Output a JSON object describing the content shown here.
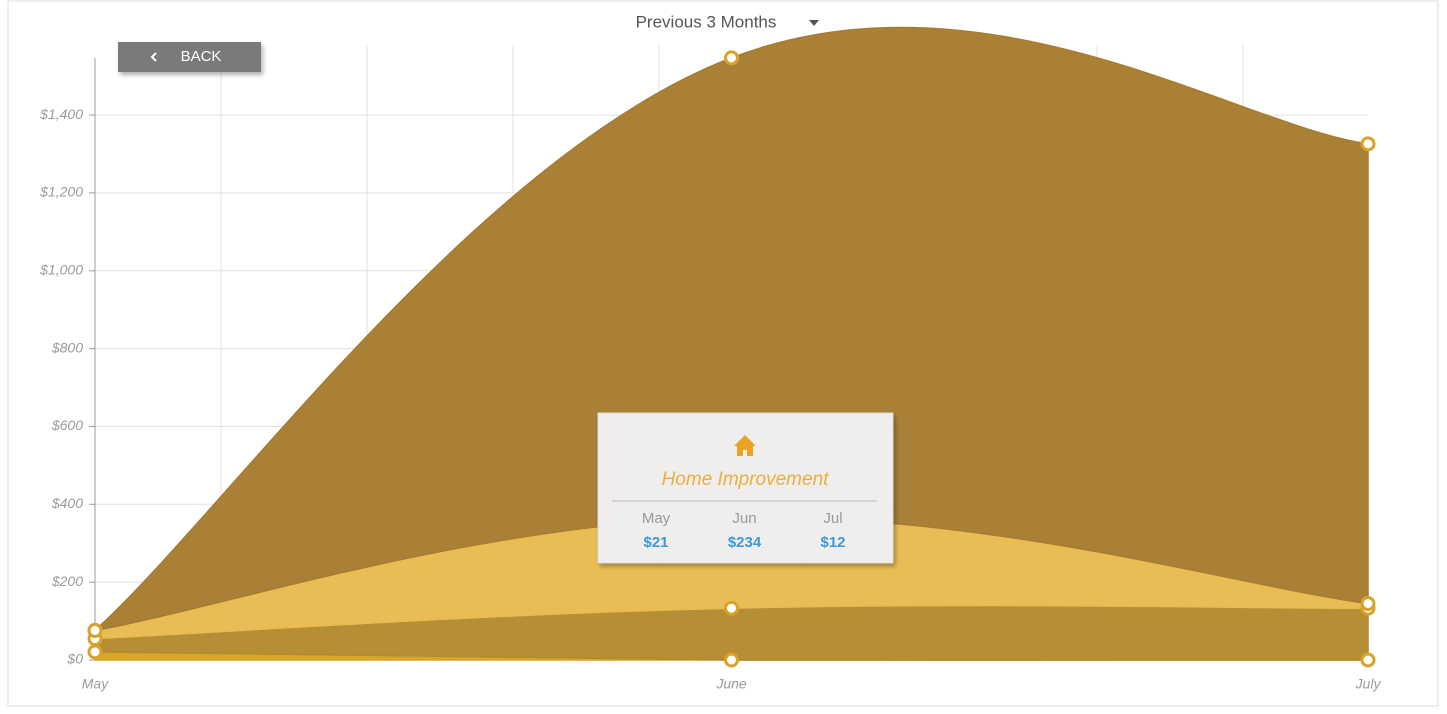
{
  "controls": {
    "range": "Previous 3 Months",
    "back": "BACK"
  },
  "chart_data": {
    "type": "stacked_area",
    "categories": [
      "May",
      "June",
      "July"
    ],
    "series": [
      {
        "color": "#d6a324",
        "values": [
          21,
          0,
          0
        ]
      },
      {
        "color": "#b38a2e",
        "values": [
          34,
          133,
          133
        ]
      },
      {
        "name": "Home Improvement",
        "color": "#e8bb4f",
        "values": [
          21,
          234,
          12
        ],
        "value_labels": [
          "$21",
          "$234",
          "$12"
        ]
      },
      {
        "color": "#a67c30",
        "values": [
          0,
          1180,
          1181
        ]
      }
    ],
    "ylim": [
      0,
      1580
    ],
    "yticks": [
      {
        "value": 0,
        "label": "$0"
      },
      {
        "value": 200,
        "label": "$200"
      },
      {
        "value": 400,
        "label": "$400"
      },
      {
        "value": 600,
        "label": "$600"
      },
      {
        "value": 800,
        "label": "$800"
      },
      {
        "value": 1000,
        "label": "$1,000"
      },
      {
        "value": 1200,
        "label": "$1,200"
      },
      {
        "value": 1400,
        "label": "$1,400"
      }
    ],
    "grid": true,
    "tooltip": {
      "series": 2,
      "categories": [
        "May",
        "Jun",
        "Jul"
      ]
    }
  }
}
